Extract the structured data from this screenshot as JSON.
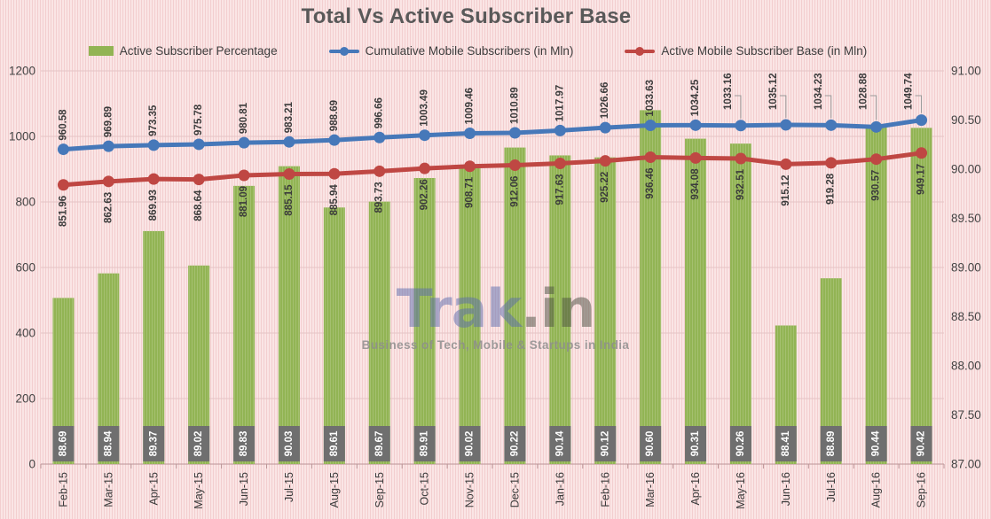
{
  "title": "Total Vs Active Subscriber Base",
  "watermark": {
    "logo_primary": "Trak",
    "logo_suffix": ".in",
    "tagline": "Business of Tech, Mobile & Startups in India"
  },
  "colors": {
    "background": "#fae5e5",
    "background_stripe": "#f3cecf",
    "gridline": "#e4c4c5",
    "axis_line": "#bb9496",
    "text_dark": "#3b3b3b",
    "bar_label_box": "#6f6f6f",
    "bar_label_text": "#ffffff",
    "title_text": "#595959"
  },
  "chart_data": {
    "type": "bar+line combo",
    "title": "Total Vs Active Subscriber Base",
    "categories": [
      "Feb-15",
      "Mar-15",
      "Apr-15",
      "May-15",
      "Jun-15",
      "Jul-15",
      "Aug-15",
      "Sep-15",
      "Oct-15",
      "Nov-15",
      "Dec-15",
      "Jan-16",
      "Feb-16",
      "Mar-16",
      "Apr-16",
      "May-16",
      "Jun-16",
      "Jul-16",
      "Aug-16",
      "Sep-16"
    ],
    "series": [
      {
        "name": "Active Subscriber Percentage",
        "type": "bar",
        "axis": "right",
        "color": "#92b454",
        "values": [
          88.69,
          88.94,
          89.37,
          89.02,
          89.83,
          90.03,
          89.61,
          89.67,
          89.91,
          90.02,
          90.22,
          90.14,
          90.12,
          90.6,
          90.31,
          90.26,
          88.41,
          88.89,
          90.44,
          90.42
        ],
        "labels": [
          "88.69",
          "88.94",
          "89.37",
          "89.02",
          "89.83",
          "90.03",
          "89.61",
          "89.67",
          "89.91",
          "90.02",
          "90.22",
          "90.14",
          "90.12",
          "90.60",
          "90.31",
          "90.26",
          "88.41",
          "88.89",
          "90.44",
          "90.42"
        ]
      },
      {
        "name": "Cumulative Mobile Subscribers (in Mln)",
        "type": "line",
        "axis": "left",
        "color": "#4678b9",
        "values": [
          960.58,
          969.89,
          973.35,
          975.78,
          980.81,
          983.21,
          988.69,
          996.66,
          1003.49,
          1009.46,
          1010.89,
          1017.97,
          1026.66,
          1033.63,
          1034.25,
          1033.16,
          1035.12,
          1034.23,
          1028.88,
          1049.74
        ],
        "labels": [
          "960.58",
          "969.89",
          "973.35",
          "975.78",
          "980.81",
          "983.21",
          "988.69",
          "996.66",
          "1003.49",
          "1009.46",
          "1010.89",
          "1017.97",
          "1026.66",
          "1033.63",
          "1034.25",
          "1033.16",
          "1035.12",
          "1034.23",
          "1028.88",
          "1049.74"
        ],
        "callout_label_indices": [
          15,
          16,
          17,
          18,
          19
        ]
      },
      {
        "name": "Active Mobile Subscriber Base (in Mln)",
        "type": "line",
        "axis": "left",
        "color": "#bf4743",
        "values": [
          851.96,
          862.63,
          869.93,
          868.64,
          881.09,
          885.15,
          885.94,
          893.73,
          902.26,
          908.71,
          912.06,
          917.63,
          925.22,
          936.46,
          934.08,
          932.51,
          915.12,
          919.28,
          930.57,
          949.17
        ],
        "labels": [
          "851.96",
          "862.63",
          "869.93",
          "868.64",
          "881.09",
          "885.15",
          "885.94",
          "893.73",
          "902.26",
          "908.71",
          "912.06",
          "917.63",
          "925.22",
          "936.46",
          "934.08",
          "932.51",
          "915.12",
          "919.28",
          "930.57",
          "949.17"
        ]
      }
    ],
    "left_axis": {
      "min": 0,
      "max": 1200,
      "step": 200,
      "tick_labels": [
        "1200",
        "1000",
        "800",
        "600",
        "400",
        "200",
        "0"
      ]
    },
    "right_axis": {
      "min": 87,
      "max": 91,
      "step": 0.5,
      "tick_labels": [
        "91.00",
        "90.50",
        "90.00",
        "89.50",
        "89.00",
        "88.50",
        "88.00",
        "87.50",
        "87.00"
      ]
    },
    "grid": "horizontal only",
    "legend_position": "top"
  }
}
